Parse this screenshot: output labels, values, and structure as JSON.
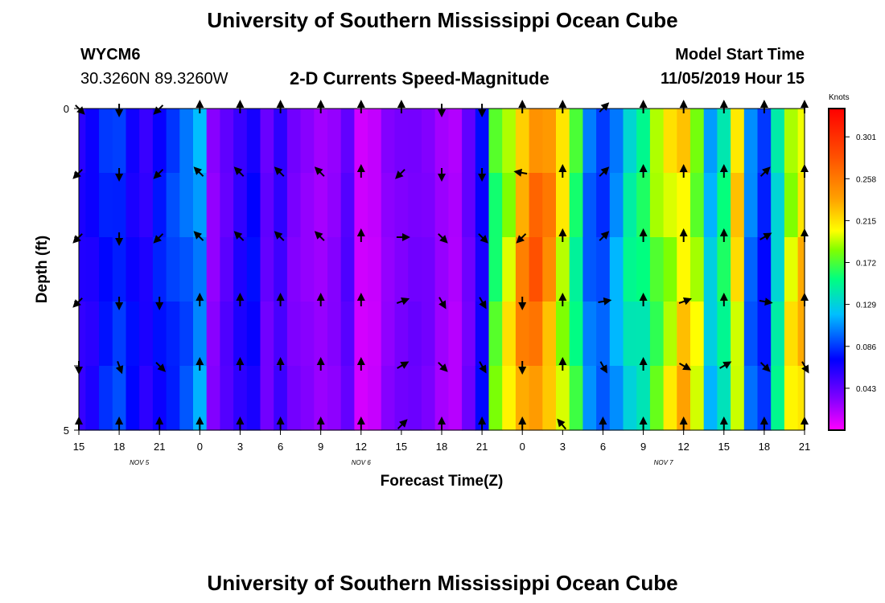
{
  "header": {
    "title": "University of Southern Mississippi Ocean Cube",
    "station": "WYCM6",
    "coords": "30.3260N 89.3260W",
    "subtitle": "2-D Currents Speed-Magnitude",
    "model_label": "Model Start Time",
    "model_time": "11/05/2019 Hour 15"
  },
  "footer": {
    "title": "University of Southern Mississippi Ocean Cube"
  },
  "chart_data": {
    "type": "heatmap",
    "xlabel": "Forecast Time(Z)",
    "ylabel": "Depth (ft)",
    "x_ticks": [
      "15",
      "18",
      "21",
      "0",
      "3",
      "6",
      "9",
      "12",
      "15",
      "18",
      "21",
      "0",
      "3",
      "6",
      "9",
      "12",
      "15",
      "18",
      "21"
    ],
    "day_labels": [
      {
        "text": "NOV 5",
        "tick_index": 1.5
      },
      {
        "text": "NOV 6",
        "tick_index": 7
      },
      {
        "text": "NOV 7",
        "tick_index": 14.5
      }
    ],
    "y_ticks": [
      "0",
      "5"
    ],
    "colorbar": {
      "unit": "Knots",
      "ticks": [
        "0.301",
        "0.258",
        "0.215",
        "0.172",
        "0.129",
        "0.086",
        "0.043"
      ],
      "range": [
        0,
        0.33
      ]
    },
    "hours_start": 0,
    "hours_end": 54,
    "depth_layers": 5,
    "depth_values": [
      0,
      1,
      2,
      3,
      4,
      5
    ],
    "speed_profile": [
      [
        0,
        0.06
      ],
      [
        1,
        0.065
      ],
      [
        2,
        0.08
      ],
      [
        3,
        0.085
      ],
      [
        4,
        0.07
      ],
      [
        5,
        0.06
      ],
      [
        6,
        0.075
      ],
      [
        7,
        0.085
      ],
      [
        8,
        0.095
      ],
      [
        9,
        0.11
      ],
      [
        10,
        0.03
      ],
      [
        11,
        0.045
      ],
      [
        12,
        0.06
      ],
      [
        13,
        0.07
      ],
      [
        14,
        0.04
      ],
      [
        15,
        0.055
      ],
      [
        16,
        0.035
      ],
      [
        17,
        0.03
      ],
      [
        18,
        0.025
      ],
      [
        19,
        0.03
      ],
      [
        20,
        0.045
      ],
      [
        21,
        0.012
      ],
      [
        22,
        0.015
      ],
      [
        23,
        0.03
      ],
      [
        24,
        0.035
      ],
      [
        25,
        0.038
      ],
      [
        26,
        0.035
      ],
      [
        27,
        0.025
      ],
      [
        28,
        0.02
      ],
      [
        29,
        0.04
      ],
      [
        30,
        0.07
      ],
      [
        31,
        0.17
      ],
      [
        32,
        0.2
      ],
      [
        33,
        0.24
      ],
      [
        34,
        0.26
      ],
      [
        35,
        0.24
      ],
      [
        36,
        0.2
      ],
      [
        37,
        0.16
      ],
      [
        38,
        0.1
      ],
      [
        39,
        0.09
      ],
      [
        40,
        0.11
      ],
      [
        41,
        0.14
      ],
      [
        42,
        0.15
      ],
      [
        43,
        0.18
      ],
      [
        44,
        0.2
      ],
      [
        45,
        0.22
      ],
      [
        46,
        0.19
      ],
      [
        47,
        0.12
      ],
      [
        48,
        0.15
      ],
      [
        49,
        0.21
      ],
      [
        50,
        0.1
      ],
      [
        51,
        0.08
      ],
      [
        52,
        0.14
      ],
      [
        53,
        0.2
      ],
      [
        54,
        0.22
      ]
    ],
    "arrow_hours": [
      0,
      3,
      6,
      9,
      12,
      15,
      18,
      21,
      24,
      27,
      30,
      33,
      36,
      39,
      42,
      45,
      48,
      51,
      54
    ],
    "arrow_directions_deg": [
      [
        135,
        180,
        225,
        0,
        0,
        0,
        0,
        0,
        0,
        180,
        180,
        0,
        0,
        45,
        0,
        0,
        0,
        0,
        0
      ],
      [
        225,
        180,
        225,
        315,
        315,
        315,
        315,
        0,
        225,
        180,
        180,
        280,
        0,
        45,
        0,
        0,
        0,
        45,
        0
      ],
      [
        225,
        180,
        225,
        315,
        315,
        315,
        315,
        0,
        90,
        135,
        135,
        225,
        0,
        45,
        0,
        0,
        0,
        60,
        0
      ],
      [
        225,
        180,
        180,
        0,
        0,
        0,
        0,
        0,
        70,
        150,
        150,
        180,
        0,
        80,
        0,
        70,
        0,
        100,
        0
      ],
      [
        180,
        160,
        135,
        0,
        0,
        0,
        0,
        0,
        60,
        135,
        150,
        180,
        0,
        150,
        0,
        120,
        60,
        135,
        150
      ],
      [
        0,
        0,
        0,
        0,
        0,
        0,
        0,
        0,
        45,
        0,
        0,
        0,
        320,
        0,
        0,
        0,
        0,
        0,
        0
      ]
    ]
  }
}
